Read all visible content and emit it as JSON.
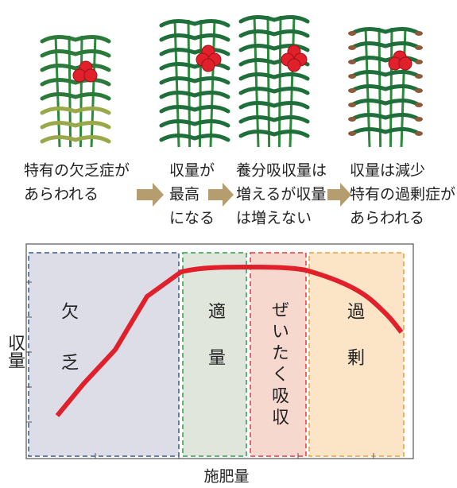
{
  "captions": [
    {
      "lines": [
        "特有の欠乏症が",
        "あらわれる"
      ]
    },
    {
      "lines": [
        "収量が",
        "最高",
        "になる"
      ]
    },
    {
      "lines": [
        "養分吸収量は",
        "増えるが収量",
        "は増えない"
      ]
    },
    {
      "lines": [
        "収量は減少",
        "特有の過剰症が",
        "あらわれる"
      ]
    }
  ],
  "zones": [
    {
      "label": "欠乏"
    },
    {
      "label": "適量"
    },
    {
      "label": "ぜいたく吸収"
    },
    {
      "label": "過剰"
    }
  ],
  "y_axis_label": "収量",
  "x_axis_label": "施肥量"
}
